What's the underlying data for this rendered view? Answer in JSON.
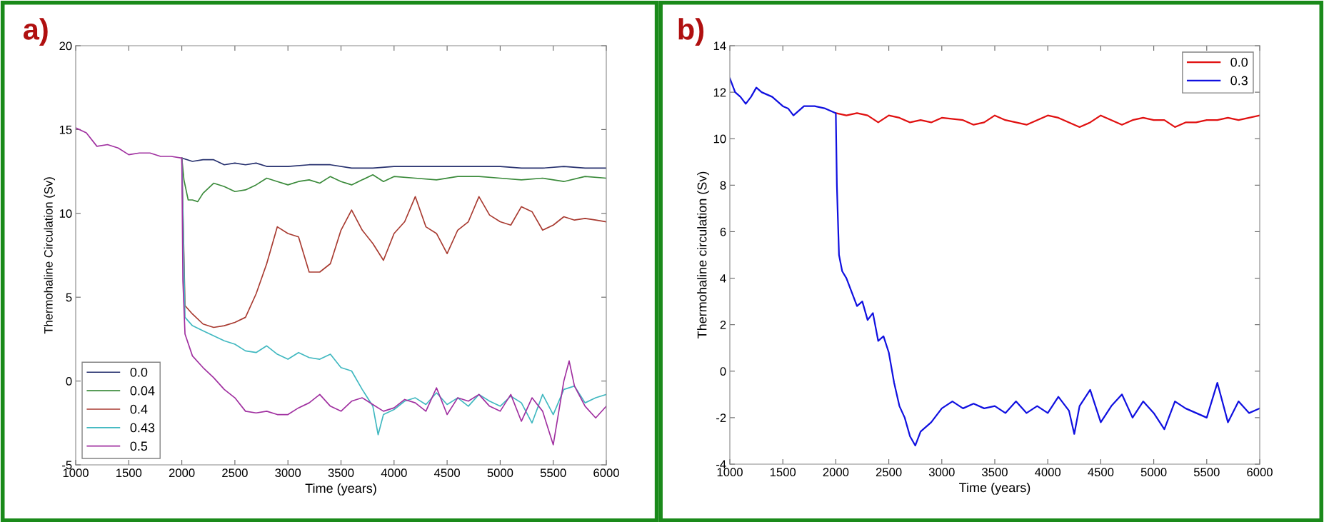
{
  "chart_data": [
    {
      "type": "line",
      "title": "a)",
      "xlabel": "Time (years)",
      "ylabel": "Thermohaline Circulation (Sv)",
      "xlim": [
        1000,
        6000
      ],
      "xticks": [
        1000,
        1500,
        2000,
        2500,
        3000,
        3500,
        4000,
        4500,
        5000,
        5500,
        6000
      ],
      "ylim": [
        -5,
        20
      ],
      "yticks": [
        -5,
        0,
        5,
        10,
        15,
        20
      ],
      "grid": false,
      "legend": "bottom left",
      "series": [
        {
          "name": "0.0",
          "color": "#26306e",
          "x": [
            2000,
            2100,
            2200,
            2300,
            2400,
            2500,
            2600,
            2700,
            2800,
            2900,
            3000,
            3200,
            3400,
            3600,
            3800,
            4000,
            4200,
            4400,
            4600,
            4800,
            5000,
            5200,
            5400,
            5600,
            5800,
            6000
          ],
          "values": [
            13.3,
            13.1,
            13.2,
            13.2,
            12.9,
            13.0,
            12.9,
            13.0,
            12.8,
            12.8,
            12.8,
            12.9,
            12.9,
            12.7,
            12.7,
            12.8,
            12.8,
            12.8,
            12.8,
            12.8,
            12.8,
            12.7,
            12.7,
            12.8,
            12.7,
            12.7
          ]
        },
        {
          "name": "0.04",
          "color": "#3a8a3a",
          "x": [
            2000,
            2020,
            2060,
            2100,
            2150,
            2200,
            2300,
            2400,
            2500,
            2600,
            2700,
            2800,
            2900,
            3000,
            3100,
            3200,
            3300,
            3400,
            3500,
            3600,
            3700,
            3800,
            3900,
            4000,
            4200,
            4400,
            4600,
            4800,
            5000,
            5200,
            5400,
            5600,
            5800,
            6000
          ],
          "values": [
            13.3,
            12.0,
            10.8,
            10.8,
            10.7,
            11.2,
            11.8,
            11.6,
            11.3,
            11.4,
            11.7,
            12.1,
            11.9,
            11.7,
            11.9,
            12.0,
            11.8,
            12.2,
            11.9,
            11.7,
            12.0,
            12.3,
            11.9,
            12.2,
            12.1,
            12.0,
            12.2,
            12.2,
            12.1,
            12.0,
            12.1,
            11.9,
            12.2,
            12.1
          ]
        },
        {
          "name": "0.4",
          "color": "#a83a30",
          "x": [
            2000,
            2030,
            2100,
            2200,
            2300,
            2400,
            2500,
            2600,
            2700,
            2800,
            2900,
            3000,
            3100,
            3200,
            3300,
            3400,
            3500,
            3600,
            3700,
            3800,
            3900,
            4000,
            4100,
            4200,
            4300,
            4400,
            4500,
            4600,
            4700,
            4800,
            4900,
            5000,
            5100,
            5200,
            5300,
            5400,
            5500,
            5600,
            5700,
            5800,
            5900,
            6000
          ],
          "values": [
            13.3,
            4.5,
            4.0,
            3.4,
            3.2,
            3.3,
            3.5,
            3.8,
            5.2,
            7.0,
            9.2,
            8.8,
            8.6,
            6.5,
            6.5,
            7.0,
            9.0,
            10.2,
            9.0,
            8.2,
            7.2,
            8.8,
            9.5,
            11.0,
            9.2,
            8.8,
            7.6,
            9.0,
            9.5,
            11.0,
            9.9,
            9.5,
            9.3,
            10.4,
            10.1,
            9.0,
            9.3,
            9.8,
            9.6,
            9.7,
            9.6,
            9.5
          ]
        },
        {
          "name": "0.43",
          "color": "#40b8c0",
          "x": [
            2000,
            2030,
            2100,
            2200,
            2300,
            2400,
            2500,
            2600,
            2700,
            2800,
            2900,
            3000,
            3100,
            3200,
            3300,
            3400,
            3500,
            3600,
            3700,
            3800,
            3850,
            3900,
            4000,
            4100,
            4200,
            4300,
            4400,
            4500,
            4600,
            4700,
            4800,
            4900,
            5000,
            5100,
            5200,
            5300,
            5400,
            5500,
            5600,
            5700,
            5800,
            5900,
            6000
          ],
          "values": [
            13.3,
            3.8,
            3.3,
            3.0,
            2.7,
            2.4,
            2.2,
            1.8,
            1.7,
            2.1,
            1.6,
            1.3,
            1.7,
            1.4,
            1.3,
            1.6,
            0.8,
            0.6,
            -0.5,
            -1.5,
            -3.2,
            -2.0,
            -1.7,
            -1.2,
            -1.0,
            -1.4,
            -0.7,
            -1.4,
            -1.0,
            -1.5,
            -0.8,
            -1.2,
            -1.5,
            -0.9,
            -1.3,
            -2.5,
            -0.8,
            -2.0,
            -0.5,
            -0.3,
            -1.3,
            -1.0,
            -0.8
          ]
        },
        {
          "name": "0.5",
          "color": "#a030a0",
          "x": [
            1000,
            1100,
            1200,
            1300,
            1400,
            1500,
            1600,
            1700,
            1800,
            1900,
            2000,
            2010,
            2030,
            2100,
            2200,
            2300,
            2400,
            2500,
            2600,
            2700,
            2800,
            2900,
            3000,
            3100,
            3200,
            3300,
            3400,
            3500,
            3600,
            3700,
            3800,
            3900,
            4000,
            4100,
            4200,
            4300,
            4400,
            4500,
            4600,
            4700,
            4800,
            4900,
            5000,
            5100,
            5200,
            5300,
            5400,
            5500,
            5600,
            5650,
            5700,
            5800,
            5900,
            6000
          ],
          "values": [
            15.1,
            14.8,
            14.0,
            14.1,
            13.9,
            13.5,
            13.6,
            13.6,
            13.4,
            13.4,
            13.3,
            6.0,
            2.8,
            1.5,
            0.8,
            0.2,
            -0.5,
            -1.0,
            -1.8,
            -1.9,
            -1.8,
            -2.0,
            -2.0,
            -1.6,
            -1.3,
            -0.8,
            -1.5,
            -1.8,
            -1.2,
            -1.0,
            -1.4,
            -1.8,
            -1.6,
            -1.1,
            -1.3,
            -1.8,
            -0.4,
            -2.0,
            -1.0,
            -1.2,
            -0.8,
            -1.5,
            -1.8,
            -0.8,
            -2.4,
            -1.0,
            -1.8,
            -3.8,
            0.0,
            1.2,
            -0.3,
            -1.5,
            -2.2,
            -1.5
          ]
        }
      ]
    },
    {
      "type": "line",
      "title": "b)",
      "xlabel": "Time (years)",
      "ylabel": "Thermohaline circulation (Sv)",
      "xlim": [
        1000,
        6000
      ],
      "xticks": [
        1000,
        1500,
        2000,
        2500,
        3000,
        3500,
        4000,
        4500,
        5000,
        5500,
        6000
      ],
      "ylim": [
        -4,
        14
      ],
      "yticks": [
        -4,
        -2,
        0,
        2,
        4,
        6,
        8,
        10,
        12,
        14
      ],
      "grid": false,
      "legend": "top right",
      "series": [
        {
          "name": "0.0",
          "color": "#e01010",
          "x": [
            2000,
            2100,
            2200,
            2300,
            2400,
            2500,
            2600,
            2700,
            2800,
            2900,
            3000,
            3200,
            3300,
            3400,
            3500,
            3600,
            3700,
            3800,
            3900,
            4000,
            4100,
            4200,
            4300,
            4400,
            4500,
            4600,
            4700,
            4800,
            4900,
            5000,
            5100,
            5200,
            5300,
            5400,
            5500,
            5600,
            5700,
            5800,
            5900,
            6000
          ],
          "values": [
            11.1,
            11.0,
            11.1,
            11.0,
            10.7,
            11.0,
            10.9,
            10.7,
            10.8,
            10.7,
            10.9,
            10.8,
            10.6,
            10.7,
            11.0,
            10.8,
            10.7,
            10.6,
            10.8,
            11.0,
            10.9,
            10.7,
            10.5,
            10.7,
            11.0,
            10.8,
            10.6,
            10.8,
            10.9,
            10.8,
            10.8,
            10.5,
            10.7,
            10.7,
            10.8,
            10.8,
            10.9,
            10.8,
            10.9,
            11.0
          ]
        },
        {
          "name": "0.3",
          "color": "#1010e0",
          "x": [
            1000,
            1050,
            1100,
            1150,
            1200,
            1250,
            1300,
            1400,
            1500,
            1550,
            1600,
            1700,
            1800,
            1900,
            2000,
            2010,
            2030,
            2060,
            2100,
            2150,
            2200,
            2250,
            2300,
            2350,
            2400,
            2450,
            2500,
            2550,
            2600,
            2650,
            2700,
            2750,
            2800,
            2900,
            3000,
            3100,
            3200,
            3300,
            3400,
            3500,
            3600,
            3700,
            3800,
            3900,
            4000,
            4100,
            4200,
            4250,
            4300,
            4400,
            4500,
            4600,
            4700,
            4800,
            4900,
            5000,
            5100,
            5200,
            5300,
            5400,
            5500,
            5600,
            5700,
            5800,
            5900,
            6000
          ],
          "values": [
            12.6,
            12.0,
            11.8,
            11.5,
            11.8,
            12.2,
            12.0,
            11.8,
            11.4,
            11.3,
            11.0,
            11.4,
            11.4,
            11.3,
            11.1,
            8.0,
            5.0,
            4.3,
            4.0,
            3.4,
            2.8,
            3.0,
            2.2,
            2.5,
            1.3,
            1.5,
            0.8,
            -0.5,
            -1.5,
            -2.0,
            -2.8,
            -3.2,
            -2.6,
            -2.2,
            -1.6,
            -1.3,
            -1.6,
            -1.4,
            -1.6,
            -1.5,
            -1.8,
            -1.3,
            -1.8,
            -1.5,
            -1.8,
            -1.1,
            -1.7,
            -2.7,
            -1.5,
            -0.8,
            -2.2,
            -1.5,
            -1.0,
            -2.0,
            -1.3,
            -1.8,
            -2.5,
            -1.3,
            -1.6,
            -1.8,
            -2.0,
            -0.5,
            -2.2,
            -1.3,
            -1.8,
            -1.6
          ]
        }
      ]
    }
  ]
}
